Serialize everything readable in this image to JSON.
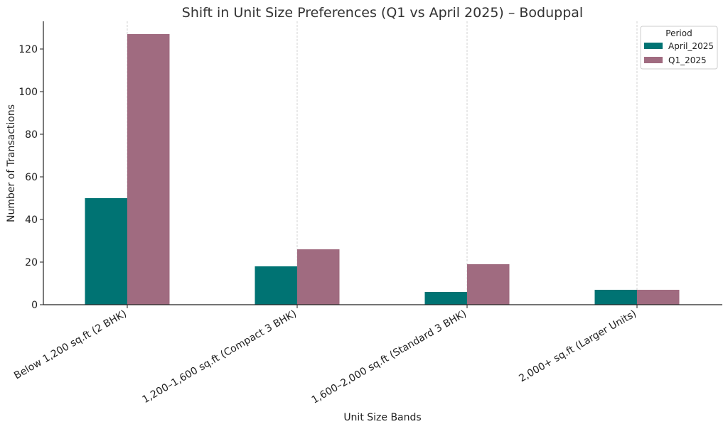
{
  "chart_data": {
    "type": "bar",
    "title": "Shift in Unit Size Preferences (Q1 vs April 2025) – Boduppal",
    "xlabel": "Unit Size Bands",
    "ylabel": "Number of Transactions",
    "categories": [
      "Below 1,200 sq.ft (2 BHK)",
      "1,200–1,600 sq.ft (Compact 3 BHK)",
      "1,600–2,000 sq.ft (Standard 3 BHK)",
      "2,000+ sq.ft (Larger Units)"
    ],
    "series": [
      {
        "name": "April_2025",
        "values": [
          50,
          18,
          6,
          7
        ],
        "color": "#007373"
      },
      {
        "name": "Q1_2025",
        "values": [
          127,
          26,
          19,
          7
        ],
        "color": "#a06b80"
      }
    ],
    "ylim": [
      0,
      133
    ],
    "yticks": [
      0,
      20,
      40,
      60,
      80,
      100,
      120
    ],
    "grid": "vertical-dashed",
    "legend": {
      "title": "Period",
      "placement": "top-right"
    }
  }
}
